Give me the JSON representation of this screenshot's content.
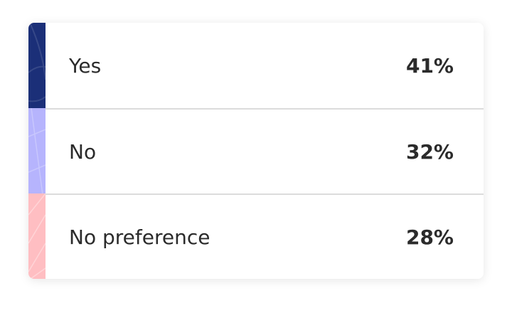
{
  "options": [
    {
      "label": "Yes",
      "percent": "41%",
      "color": "#1b2f78"
    },
    {
      "label": "No",
      "percent": "32%",
      "color": "#b6b4fd"
    },
    {
      "label": "No preference",
      "percent": "28%",
      "color": "#ffbec2"
    }
  ]
}
